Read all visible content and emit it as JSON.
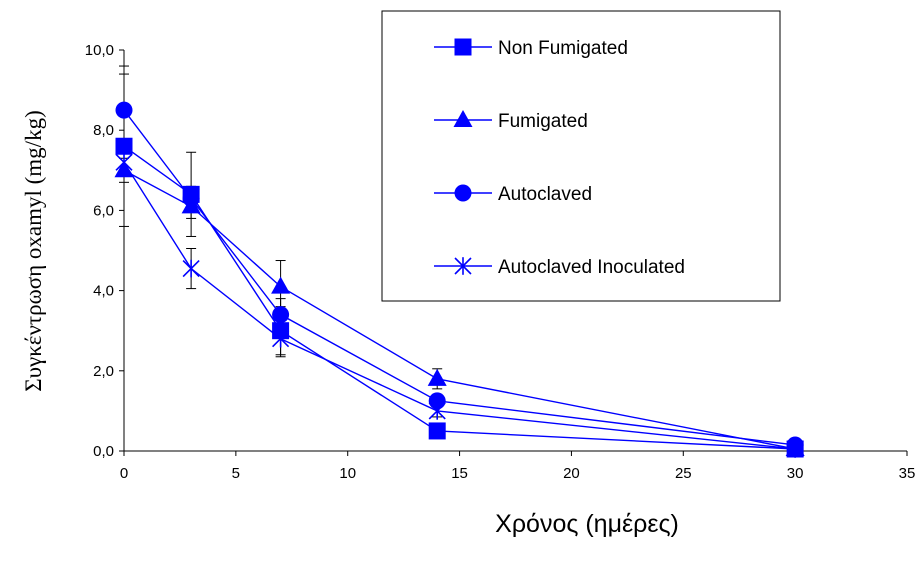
{
  "chart_data": {
    "type": "line",
    "xlabel": "Χρόνος (ημέρες)",
    "ylabel": "Συγκέντρωση oxamyl (mg/kg)",
    "xlim": [
      0,
      35
    ],
    "ylim": [
      0,
      10
    ],
    "xticks": [
      0,
      5,
      10,
      15,
      20,
      25,
      30,
      35
    ],
    "xtick_labels": [
      "0",
      "5",
      "10",
      "15",
      "20",
      "25",
      "30",
      "35"
    ],
    "yticks": [
      0,
      2,
      4,
      6,
      8,
      10
    ],
    "ytick_labels": [
      "0,0",
      "2,0",
      "4,0",
      "6,0",
      "8,0",
      "10,0"
    ],
    "grid": false,
    "legend_position": "top-right",
    "line_color": "#0000ff",
    "x": [
      0,
      3,
      7,
      14,
      30
    ],
    "series": [
      {
        "name": "Non Fumigated",
        "marker": "square",
        "values": [
          7.6,
          6.4,
          3.0,
          0.5,
          0.05
        ],
        "error": [
          2.0,
          1.05,
          0.6,
          0.1,
          0.05
        ]
      },
      {
        "name": "Fumigated",
        "marker": "triangle",
        "values": [
          7.0,
          6.1,
          4.1,
          1.8,
          0.05
        ],
        "error": [
          0.3,
          0.3,
          0.65,
          0.25,
          0.05
        ]
      },
      {
        "name": "Autoclaved",
        "marker": "circle",
        "values": [
          8.5,
          6.3,
          3.4,
          1.25,
          0.15
        ],
        "error": [
          0.9,
          0.3,
          0.4,
          0.15,
          0.05
        ]
      },
      {
        "name": "Autoclaved Inoculated",
        "marker": "star",
        "values": [
          7.2,
          4.55,
          2.8,
          1.0,
          0.05
        ],
        "error": [
          0.3,
          0.5,
          0.45,
          0.15,
          0.05
        ]
      }
    ]
  }
}
